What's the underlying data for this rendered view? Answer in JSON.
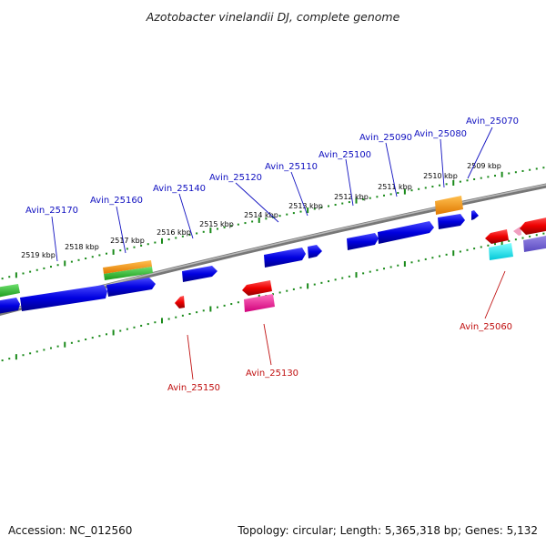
{
  "title": "Azotobacter vinelandii DJ, complete genome",
  "footer": {
    "accession": "Accession: NC_012560",
    "topology": "Topology: circular; Length: 5,365,318 bp; Genes: 5,132"
  },
  "colors": {
    "forward_gene": "#0000ee",
    "reverse_gene": "#ee0000",
    "backbone": "#888888",
    "tick": "#1a8a1a",
    "label_forward": "#1010c0",
    "label_reverse": "#c01010"
  },
  "ticks": [
    {
      "label": "2519 kbp"
    },
    {
      "label": "2518 kbp"
    },
    {
      "label": "2517 kbp"
    },
    {
      "label": "2516 kbp"
    },
    {
      "label": "2515 kbp"
    },
    {
      "label": "2514 kbp"
    },
    {
      "label": "2513 kbp"
    },
    {
      "label": "2512 kbp"
    },
    {
      "label": "2511 kbp"
    },
    {
      "label": "2510 kbp"
    },
    {
      "label": "2509 kbp"
    }
  ],
  "gene_labels": {
    "forward": [
      "Avin_25170",
      "Avin_25160",
      "Avin_25140",
      "Avin_25120",
      "Avin_25110",
      "Avin_25100",
      "Avin_25090",
      "Avin_25080",
      "Avin_25070"
    ],
    "reverse": [
      "Avin_25150",
      "Avin_25130",
      "Avin_25060"
    ]
  }
}
